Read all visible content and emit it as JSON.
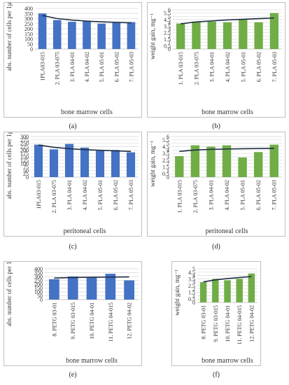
{
  "captions": [
    "(a)",
    "(b)",
    "(c)",
    "(d)",
    "(e)",
    "(f)"
  ],
  "colors": {
    "blue_bar": "#4472c4",
    "green_bar": "#70ad47",
    "trend": "#1f2d44",
    "grid": "#d9d9d9"
  },
  "chart_data": [
    {
      "id": "a",
      "type": "bar",
      "ylabel": "abs. number of cells per 1µl",
      "xlabel": "bone marrow cells",
      "ylim": [
        0,
        400
      ],
      "yticks": [
        0,
        50,
        100,
        150,
        200,
        250,
        300,
        350,
        400
      ],
      "categories": [
        "1PLA03-015",
        "2. PLA 03-075",
        "3. PLA 04-01",
        "4. PLA 04-02",
        "5. PLA 05-01",
        "6. PLA 05-02",
        "7. PLA 05-03"
      ],
      "values": [
        350,
        285,
        268,
        275,
        250,
        265,
        265
      ],
      "trendline": [
        330,
        300,
        285,
        275,
        268,
        263,
        258
      ]
    },
    {
      "id": "b",
      "type": "bar",
      "ylabel": "weight gain, mg⁻¹",
      "xlabel": "bone marrow cells",
      "ylim": [
        0,
        6
      ],
      "yticks": [
        0,
        0.5,
        1,
        1.5,
        2,
        2.5,
        3,
        3.5,
        4,
        4.5,
        5,
        5.5,
        6
      ],
      "categories": [
        "1. PLA 03-015",
        "2. PLA 03-075",
        "3. PLA 04-01",
        "4. PLA 04-02",
        "5. PLA 05-01",
        "6. PLA 05-02",
        "7. PLA 05-03"
      ],
      "values": [
        3.9,
        4.2,
        4.2,
        4.1,
        4.5,
        4.1,
        5.5
      ],
      "trendline": [
        3.85,
        4.15,
        4.3,
        4.45,
        4.55,
        4.65,
        4.75
      ]
    },
    {
      "id": "c",
      "type": "bar",
      "ylabel": "abs. number of cells per 1µl",
      "xlabel": "peritoneal cells",
      "ylim": [
        0,
        300
      ],
      "yticks": [
        0,
        25,
        50,
        75,
        100,
        125,
        150,
        175,
        200,
        225,
        250,
        275,
        300
      ],
      "categories": [
        "1PLA03-015",
        "2. PLA 03-075",
        "3. PLA 04-01",
        "4. PLA 04-02",
        "5. PLA 05-01",
        "6. PLA 05-02",
        "7. PLA 05-03"
      ],
      "values": [
        240,
        205,
        245,
        218,
        195,
        200,
        183
      ],
      "trendline": [
        237,
        220,
        210,
        203,
        198,
        194,
        190
      ]
    },
    {
      "id": "d",
      "type": "bar",
      "ylabel": "weight gain, mg⁻¹",
      "xlabel": "peritoneal cells",
      "ylim": [
        0,
        6
      ],
      "yticks": [
        0,
        0.5,
        1,
        1.5,
        2,
        2.5,
        3,
        3.5,
        4,
        4.5,
        5,
        5.5,
        6
      ],
      "categories": [
        "1. PLA 03-015",
        "2. PLA 03-075",
        "3. PLA 04-01",
        "4. PLA 04-02",
        "5. PLA 05-01",
        "6. PLA 05-02",
        "7. PLA 05-03"
      ],
      "values": [
        3.1,
        4.7,
        4.5,
        4.7,
        2.9,
        3.7,
        4.8
      ],
      "trendline": [
        3.8,
        4.0,
        4.1,
        4.15,
        4.2,
        4.22,
        4.25
      ]
    },
    {
      "id": "e",
      "type": "bar",
      "ylabel": "abs. number of cells per 1µl",
      "xlabel": "bone marrow cells",
      "ylim": [
        0,
        400
      ],
      "yticks": [
        0,
        50,
        100,
        150,
        200,
        250,
        300,
        350,
        400
      ],
      "categories": [
        "8. PETG 03-01",
        "9. PETG 03-015",
        "10. PETG 04-01",
        "11. PETG 04-015",
        "12. PETG 04-02"
      ],
      "values": [
        265,
        300,
        285,
        335,
        250
      ],
      "trendline": [
        280,
        287,
        290,
        292,
        295
      ]
    },
    {
      "id": "f",
      "type": "bar",
      "ylabel": "weight gain, mg⁻¹",
      "xlabel": "bone marrow cells",
      "ylim": [
        0,
        5
      ],
      "yticks": [
        0,
        0.5,
        1,
        1.5,
        2,
        2.5,
        3,
        3.5,
        4,
        4.5,
        5
      ],
      "categories": [
        "8. PETG 03-01",
        "9. PETG 03-015",
        "10. PETG 04-01",
        "11. PETG 04-015",
        "12. PETG 04-02"
      ],
      "values": [
        3.0,
        3.5,
        3.3,
        3.5,
        4.3
      ],
      "trendline": [
        3.05,
        3.35,
        3.55,
        3.7,
        3.85
      ]
    }
  ]
}
